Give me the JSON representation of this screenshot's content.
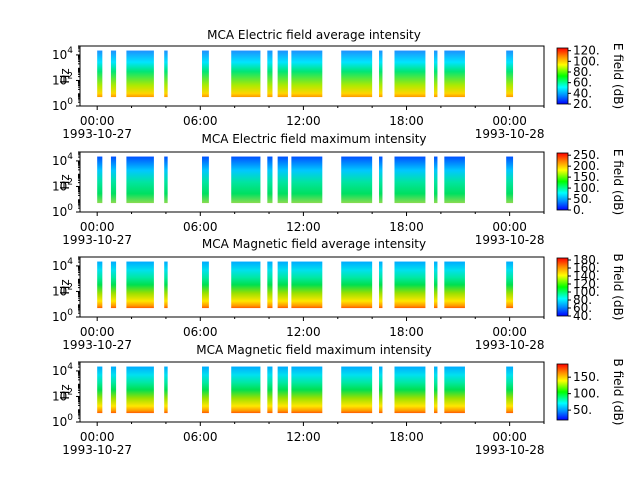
{
  "panels": [
    {
      "title": "MCA  Electric field average intensity",
      "ylabel": "Hz",
      "colorbar_label": "E field (dB)",
      "colorbar_ticks": [
        "20.",
        "40.",
        "60.",
        "80.",
        "100.",
        "120."
      ],
      "colorbar_range": [
        20,
        125
      ],
      "palette": "hot-low"
    },
    {
      "title": "MCA  Electric field maximum intensity",
      "ylabel": "Hz",
      "colorbar_label": "E field (dB)",
      "colorbar_ticks": [
        "0.",
        "50.",
        "100.",
        "150.",
        "200.",
        "250."
      ],
      "colorbar_range": [
        0,
        260
      ],
      "palette": "cyan-green"
    },
    {
      "title": "MCA  Magnetic field average intensity",
      "ylabel": "Hz",
      "colorbar_label": "B field (dB)",
      "colorbar_ticks": [
        "40.",
        "60.",
        "80.",
        "100.",
        "120.",
        "140.",
        "160.",
        "180."
      ],
      "colorbar_range": [
        40,
        185
      ],
      "palette": "layered"
    },
    {
      "title": "MCA  Magnetic field maximum intensity",
      "ylabel": "Hz",
      "colorbar_label": "B field (dB)",
      "colorbar_ticks": [
        "50.",
        "100.",
        "150."
      ],
      "colorbar_range": [
        20,
        190
      ],
      "palette": "layered"
    }
  ],
  "chart_data": {
    "type": "heatmap",
    "x_axis": {
      "range_hours": [
        -1,
        26
      ],
      "ticks": [
        {
          "hour": 0,
          "label": "00:00",
          "sublabel": "1993-10-27"
        },
        {
          "hour": 6,
          "label": "06:00",
          "sublabel": ""
        },
        {
          "hour": 12,
          "label": "12:00",
          "sublabel": ""
        },
        {
          "hour": 18,
          "label": "18:00",
          "sublabel": ""
        },
        {
          "hour": 24,
          "label": "00:00",
          "sublabel": "1993-10-28"
        }
      ]
    },
    "y_axis": {
      "scale": "log",
      "range_hz": [
        1,
        50000
      ],
      "ticks": [
        {
          "value": 1,
          "label": "10^0"
        },
        {
          "value": 100,
          "label": "10^2"
        },
        {
          "value": 10000,
          "label": "10^4"
        }
      ],
      "data_low_hz": 5,
      "data_high_hz": 22000
    },
    "data_intervals_hours": [
      [
        0.0,
        0.3
      ],
      [
        0.8,
        1.1
      ],
      [
        1.7,
        3.3
      ],
      [
        3.9,
        4.1
      ],
      [
        6.1,
        6.5
      ],
      [
        7.8,
        9.5
      ],
      [
        9.9,
        10.2
      ],
      [
        10.5,
        11.1
      ],
      [
        11.3,
        13.1
      ],
      [
        14.2,
        16.0
      ],
      [
        16.4,
        16.6
      ],
      [
        17.3,
        19.1
      ],
      [
        19.6,
        19.8
      ],
      [
        20.2,
        21.4
      ],
      [
        23.8,
        24.2
      ]
    ]
  }
}
